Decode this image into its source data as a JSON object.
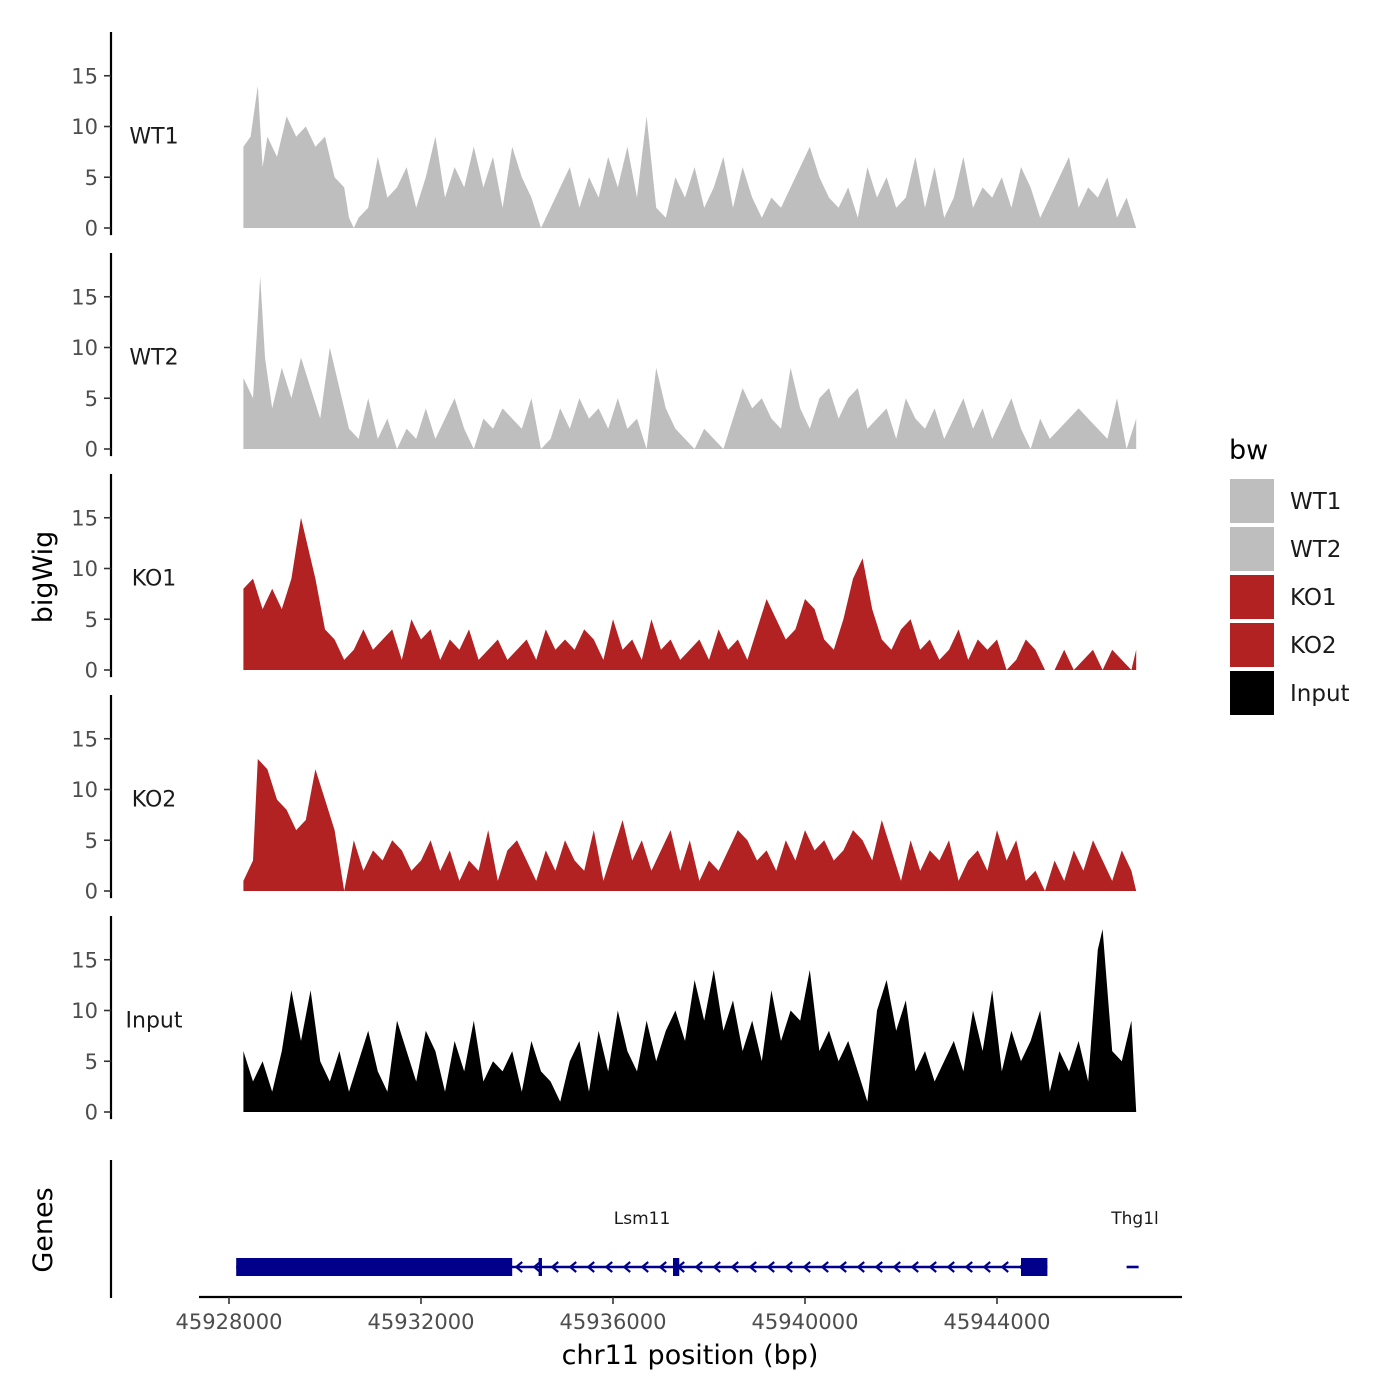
{
  "chart_data": {
    "type": "area",
    "title": "",
    "xlabel": "chr11 position (bp)",
    "ylabel": "bigWig",
    "genes_label": "Genes",
    "xlim": [
      45927000,
      45947900
    ],
    "x_ticks": [
      45928000,
      45932000,
      45936000,
      45940000,
      45944000
    ],
    "x_tick_labels": [
      "45928000",
      "45932000",
      "45936000",
      "45940000",
      "45944000"
    ],
    "ylim": [
      0,
      19
    ],
    "y_ticks": [
      0,
      5,
      10,
      15
    ],
    "y_tick_labels": [
      "0",
      "5",
      "10",
      "15"
    ],
    "legend": {
      "title": "bw",
      "position": "right",
      "entries": [
        {
          "name": "WT1",
          "color": "#BEBEBE"
        },
        {
          "name": "WT2",
          "color": "#BEBEBE"
        },
        {
          "name": "KO1",
          "color": "#B22222"
        },
        {
          "name": "KO2",
          "color": "#B22222"
        },
        {
          "name": "Input",
          "color": "#000000"
        }
      ]
    },
    "series": [
      {
        "name": "WT1",
        "color": "#BEBEBE",
        "x": [
          45928300,
          45928450,
          45928600,
          45928700,
          45928800,
          45929000,
          45929200,
          45929400,
          45929600,
          45929800,
          45930000,
          45930200,
          45930400,
          45930500,
          45930600,
          45930700,
          45930900,
          45931100,
          45931300,
          45931500,
          45931700,
          45931900,
          45932100,
          45932300,
          45932500,
          45932700,
          45932900,
          45933100,
          45933300,
          45933500,
          45933700,
          45933900,
          45934100,
          45934300,
          45934500,
          45934700,
          45934900,
          45935100,
          45935300,
          45935500,
          45935700,
          45935900,
          45936100,
          45936300,
          45936500,
          45936700,
          45936900,
          45937100,
          45937300,
          45937500,
          45937700,
          45937900,
          45938100,
          45938300,
          45938500,
          45938700,
          45938900,
          45939100,
          45939300,
          45939500,
          45939700,
          45939900,
          45940100,
          45940300,
          45940500,
          45940700,
          45940900,
          45941100,
          45941300,
          45941500,
          45941700,
          45941900,
          45942100,
          45942300,
          45942500,
          45942700,
          45942900,
          45943100,
          45943300,
          45943500,
          45943700,
          45943900,
          45944100,
          45944300,
          45944500,
          45944700,
          45944900,
          45945100,
          45945300,
          45945500,
          45945700,
          45945900,
          45946100,
          45946300,
          45946500,
          45946700,
          45946900
        ],
        "values": [
          8,
          9,
          14,
          6,
          9,
          7,
          11,
          9,
          10,
          8,
          9,
          5,
          4,
          1,
          0,
          1,
          2,
          7,
          3,
          4,
          6,
          2,
          5,
          9,
          3,
          6,
          4,
          8,
          4,
          7,
          2,
          8,
          5,
          3,
          0,
          2,
          4,
          6,
          2,
          5,
          3,
          7,
          4,
          8,
          3,
          11,
          2,
          1,
          5,
          3,
          6,
          2,
          4,
          7,
          2,
          6,
          3,
          1,
          3,
          2,
          4,
          6,
          8,
          5,
          3,
          2,
          4,
          1,
          6,
          3,
          5,
          2,
          3,
          7,
          2,
          6,
          1,
          3,
          7,
          2,
          4,
          3,
          5,
          2,
          6,
          4,
          1,
          3,
          5,
          7,
          2,
          4,
          3,
          5,
          1,
          3,
          0
        ]
      },
      {
        "name": "WT2",
        "color": "#BEBEBE",
        "x": [
          45928300,
          45928500,
          45928650,
          45928750,
          45928900,
          45929100,
          45929300,
          45929500,
          45929700,
          45929900,
          45930100,
          45930300,
          45930500,
          45930700,
          45930900,
          45931100,
          45931300,
          45931500,
          45931700,
          45931900,
          45932100,
          45932300,
          45932500,
          45932700,
          45932900,
          45933100,
          45933300,
          45933500,
          45933700,
          45933900,
          45934100,
          45934300,
          45934500,
          45934700,
          45934900,
          45935100,
          45935300,
          45935500,
          45935700,
          45935900,
          45936100,
          45936300,
          45936500,
          45936700,
          45936900,
          45937100,
          45937300,
          45937500,
          45937700,
          45937900,
          45938100,
          45938300,
          45938500,
          45938700,
          45938900,
          45939100,
          45939300,
          45939500,
          45939700,
          45939900,
          45940100,
          45940300,
          45940500,
          45940700,
          45940900,
          45941100,
          45941300,
          45941500,
          45941700,
          45941900,
          45942100,
          45942300,
          45942500,
          45942700,
          45942900,
          45943100,
          45943300,
          45943500,
          45943700,
          45943900,
          45944100,
          45944300,
          45944500,
          45944700,
          45944900,
          45945100,
          45945300,
          45945500,
          45945700,
          45945900,
          45946100,
          45946300,
          45946500,
          45946700,
          45946900
        ],
        "values": [
          7,
          5,
          17,
          9,
          4,
          8,
          5,
          9,
          6,
          3,
          10,
          6,
          2,
          1,
          5,
          1,
          3,
          0,
          2,
          1,
          4,
          1,
          3,
          5,
          2,
          0,
          3,
          2,
          4,
          3,
          2,
          5,
          0,
          1,
          4,
          2,
          5,
          3,
          4,
          2,
          5,
          2,
          3,
          0,
          8,
          4,
          2,
          1,
          0,
          2,
          1,
          0,
          3,
          6,
          4,
          5,
          3,
          2,
          8,
          4,
          2,
          5,
          6,
          3,
          5,
          6,
          2,
          3,
          4,
          1,
          5,
          3,
          2,
          4,
          1,
          3,
          5,
          2,
          4,
          1,
          3,
          5,
          2,
          0,
          3,
          1,
          2,
          3,
          4,
          3,
          2,
          1,
          5,
          0,
          3
        ]
      },
      {
        "name": "KO1",
        "color": "#B22222",
        "x": [
          45928300,
          45928500,
          45928700,
          45928900,
          45929100,
          45929300,
          45929500,
          45929600,
          45929800,
          45930000,
          45930200,
          45930400,
          45930600,
          45930800,
          45931000,
          45931200,
          45931400,
          45931600,
          45931800,
          45932000,
          45932200,
          45932400,
          45932600,
          45932800,
          45933000,
          45933200,
          45933400,
          45933600,
          45933800,
          45934000,
          45934200,
          45934400,
          45934600,
          45934800,
          45935000,
          45935200,
          45935400,
          45935600,
          45935800,
          45936000,
          45936200,
          45936400,
          45936600,
          45936800,
          45937000,
          45937200,
          45937400,
          45937600,
          45937800,
          45938000,
          45938200,
          45938400,
          45938600,
          45938800,
          45939000,
          45939200,
          45939400,
          45939600,
          45939800,
          45940000,
          45940200,
          45940400,
          45940600,
          45940800,
          45941000,
          45941200,
          45941400,
          45941600,
          45941800,
          45942000,
          45942200,
          45942400,
          45942600,
          45942800,
          45943000,
          45943200,
          45943400,
          45943600,
          45943800,
          45944000,
          45944200,
          45944400,
          45944600,
          45944800,
          45945000,
          45945200,
          45945400,
          45945600,
          45945800,
          45946000,
          45946200,
          45946400,
          45946600,
          45946800,
          45946900
        ],
        "values": [
          8,
          9,
          6,
          8,
          6,
          9,
          15,
          13,
          9,
          4,
          3,
          1,
          2,
          4,
          2,
          3,
          4,
          1,
          5,
          3,
          4,
          1,
          3,
          2,
          4,
          1,
          2,
          3,
          1,
          2,
          3,
          1,
          4,
          2,
          3,
          2,
          4,
          3,
          1,
          5,
          2,
          3,
          1,
          5,
          2,
          3,
          1,
          2,
          3,
          1,
          4,
          2,
          3,
          1,
          4,
          7,
          5,
          3,
          4,
          7,
          6,
          3,
          2,
          5,
          9,
          11,
          6,
          3,
          2,
          4,
          5,
          2,
          3,
          1,
          2,
          4,
          1,
          3,
          2,
          3,
          0,
          1,
          3,
          2,
          0,
          0,
          2,
          0,
          1,
          2,
          0,
          2,
          1,
          0,
          2
        ]
      },
      {
        "name": "KO2",
        "color": "#B22222",
        "x": [
          45928300,
          45928500,
          45928600,
          45928800,
          45929000,
          45929200,
          45929400,
          45929600,
          45929800,
          45930000,
          45930200,
          45930400,
          45930600,
          45930800,
          45931000,
          45931200,
          45931400,
          45931600,
          45931800,
          45932000,
          45932200,
          45932400,
          45932600,
          45932800,
          45933000,
          45933200,
          45933400,
          45933600,
          45933800,
          45934000,
          45934200,
          45934400,
          45934600,
          45934800,
          45935000,
          45935200,
          45935400,
          45935600,
          45935800,
          45936000,
          45936200,
          45936400,
          45936600,
          45936800,
          45937000,
          45937200,
          45937400,
          45937600,
          45937800,
          45938000,
          45938200,
          45938400,
          45938600,
          45938800,
          45939000,
          45939200,
          45939400,
          45939600,
          45939800,
          45940000,
          45940200,
          45940400,
          45940600,
          45940800,
          45941000,
          45941200,
          45941400,
          45941600,
          45941800,
          45942000,
          45942200,
          45942400,
          45942600,
          45942800,
          45943000,
          45943200,
          45943400,
          45943600,
          45943800,
          45944000,
          45944200,
          45944400,
          45944600,
          45944800,
          45945000,
          45945200,
          45945400,
          45945600,
          45945800,
          45946000,
          45946200,
          45946400,
          45946600,
          45946800,
          45946900
        ],
        "values": [
          1,
          3,
          13,
          12,
          9,
          8,
          6,
          7,
          12,
          9,
          6,
          0,
          5,
          2,
          4,
          3,
          5,
          4,
          2,
          3,
          5,
          2,
          4,
          1,
          3,
          2,
          6,
          1,
          4,
          5,
          3,
          1,
          4,
          2,
          5,
          3,
          2,
          6,
          1,
          4,
          7,
          3,
          5,
          2,
          4,
          6,
          2,
          5,
          1,
          3,
          2,
          4,
          6,
          5,
          3,
          4,
          2,
          5,
          3,
          6,
          4,
          5,
          3,
          4,
          6,
          5,
          3,
          7,
          4,
          1,
          5,
          2,
          4,
          3,
          5,
          1,
          3,
          4,
          2,
          6,
          3,
          5,
          1,
          2,
          0,
          3,
          1,
          4,
          2,
          5,
          3,
          1,
          4,
          2,
          0
        ]
      },
      {
        "name": "Input",
        "color": "#000000",
        "x": [
          45928300,
          45928500,
          45928700,
          45928900,
          45929100,
          45929300,
          45929500,
          45929700,
          45929900,
          45930100,
          45930300,
          45930500,
          45930700,
          45930900,
          45931100,
          45931300,
          45931500,
          45931700,
          45931900,
          45932100,
          45932300,
          45932500,
          45932700,
          45932900,
          45933100,
          45933300,
          45933500,
          45933700,
          45933900,
          45934100,
          45934300,
          45934500,
          45934700,
          45934900,
          45935100,
          45935300,
          45935500,
          45935700,
          45935900,
          45936100,
          45936300,
          45936500,
          45936700,
          45936900,
          45937100,
          45937300,
          45937500,
          45937700,
          45937900,
          45938100,
          45938300,
          45938500,
          45938700,
          45938900,
          45939100,
          45939300,
          45939500,
          45939700,
          45939900,
          45940100,
          45940300,
          45940500,
          45940700,
          45940900,
          45941100,
          45941300,
          45941500,
          45941700,
          45941900,
          45942100,
          45942300,
          45942500,
          45942700,
          45942900,
          45943100,
          45943300,
          45943500,
          45943700,
          45943900,
          45944100,
          45944300,
          45944500,
          45944700,
          45944900,
          45945100,
          45945300,
          45945500,
          45945700,
          45945900,
          45946100,
          45946200,
          45946400,
          45946600,
          45946800,
          45946900
        ],
        "values": [
          6,
          3,
          5,
          2,
          6,
          12,
          7,
          12,
          5,
          3,
          6,
          2,
          5,
          8,
          4,
          2,
          9,
          6,
          3,
          8,
          6,
          2,
          7,
          4,
          9,
          3,
          5,
          4,
          6,
          2,
          7,
          4,
          3,
          1,
          5,
          7,
          2,
          8,
          4,
          10,
          6,
          4,
          9,
          5,
          8,
          10,
          7,
          13,
          9,
          14,
          8,
          11,
          6,
          9,
          5,
          12,
          7,
          10,
          9,
          14,
          6,
          8,
          5,
          7,
          4,
          1,
          10,
          13,
          8,
          11,
          4,
          6,
          3,
          5,
          7,
          4,
          10,
          6,
          12,
          4,
          8,
          5,
          7,
          10,
          2,
          6,
          4,
          7,
          3,
          16,
          18,
          6,
          5,
          9,
          0
        ]
      }
    ],
    "genes": [
      {
        "name": "Lsm11",
        "start": 45928150,
        "end": 45945050,
        "strand": "-",
        "exons": [
          [
            45928150,
            45933900
          ],
          [
            45934450,
            45934520
          ],
          [
            45937250,
            45937380
          ],
          [
            45944500,
            45945050
          ]
        ]
      },
      {
        "name": "Thg1l",
        "start": 45946700,
        "end": 45946950,
        "strand": "-",
        "exons": []
      }
    ]
  }
}
